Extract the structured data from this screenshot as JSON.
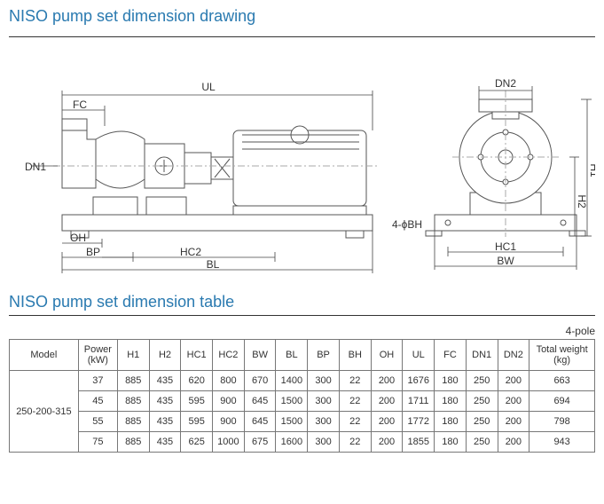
{
  "heading1": "NISO pump set dimension drawing",
  "heading2": "NISO pump set dimension table",
  "pole_label": "4-pole",
  "drawing": {
    "labels": {
      "UL": "UL",
      "FC": "FC",
      "DN1": "DN1",
      "DN2": "DN2",
      "OH": "OH",
      "BP": "BP",
      "HC2": "HC2",
      "BL": "BL",
      "H1": "H1",
      "H2": "H2",
      "HC1": "HC1",
      "BW": "BW",
      "BH4": "4-ϕBH"
    },
    "stroke": "#555555",
    "stroke_thin": "#888888",
    "dim_color": "#444444",
    "fill": "#ffffff",
    "cl_color": "#aaaaaa"
  },
  "table": {
    "headers": {
      "model": "Model",
      "power": "Power (kW)",
      "H1": "H1",
      "H2": "H2",
      "HC1": "HC1",
      "HC2": "HC2",
      "BW": "BW",
      "BL": "BL",
      "BP": "BP",
      "BH": "BH",
      "OH": "OH",
      "UL": "UL",
      "FC": "FC",
      "DN1": "DN1",
      "DN2": "DN2",
      "wt": "Total weight (kg)"
    },
    "model": "250-200-315",
    "rows": [
      {
        "power": "37",
        "H1": "885",
        "H2": "435",
        "HC1": "620",
        "HC2": "800",
        "BW": "670",
        "BL": "1400",
        "BP": "300",
        "BH": "22",
        "OH": "200",
        "UL": "1676",
        "FC": "180",
        "DN1": "250",
        "DN2": "200",
        "wt": "663"
      },
      {
        "power": "45",
        "H1": "885",
        "H2": "435",
        "HC1": "595",
        "HC2": "900",
        "BW": "645",
        "BL": "1500",
        "BP": "300",
        "BH": "22",
        "OH": "200",
        "UL": "1711",
        "FC": "180",
        "DN1": "250",
        "DN2": "200",
        "wt": "694"
      },
      {
        "power": "55",
        "H1": "885",
        "H2": "435",
        "HC1": "595",
        "HC2": "900",
        "BW": "645",
        "BL": "1500",
        "BP": "300",
        "BH": "22",
        "OH": "200",
        "UL": "1772",
        "FC": "180",
        "DN1": "250",
        "DN2": "200",
        "wt": "798"
      },
      {
        "power": "75",
        "H1": "885",
        "H2": "435",
        "HC1": "625",
        "HC2": "1000",
        "BW": "675",
        "BL": "1600",
        "BP": "300",
        "BH": "22",
        "OH": "200",
        "UL": "1855",
        "FC": "180",
        "DN1": "250",
        "DN2": "200",
        "wt": "943"
      }
    ]
  },
  "colors": {
    "title": "#2a7ab0",
    "border": "#777777",
    "text": "#333333"
  }
}
